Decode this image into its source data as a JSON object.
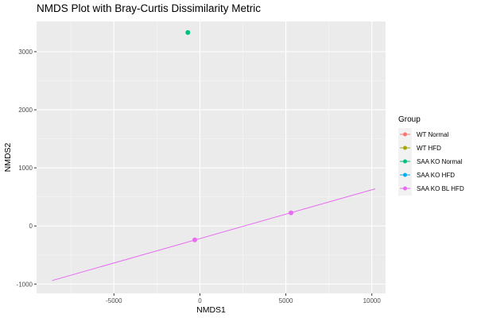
{
  "chart_data": {
    "type": "scatter",
    "title": "NMDS Plot with Bray-Curtis Dissimilarity Metric",
    "xlabel": "NMDS1",
    "ylabel": "NMDS2",
    "xlim": [
      -9500,
      10800
    ],
    "ylim": [
      -1160,
      3520
    ],
    "x_ticks": [
      -5000,
      0,
      5000,
      10000
    ],
    "y_ticks": [
      -1000,
      0,
      1000,
      2000,
      3000
    ],
    "x_minor": [
      -7500,
      -2500,
      2500,
      7500
    ],
    "y_minor": [
      -500,
      500,
      1500,
      2500
    ],
    "grid": true,
    "legend": {
      "title": "Group",
      "position": "right",
      "entries": [
        "WT Normal",
        "WT HFD",
        "SAA KO Normal",
        "SAA KO HFD",
        "SAA KO BL HFD"
      ]
    },
    "series": [
      {
        "name": "WT Normal",
        "color": "#F8766D",
        "points": []
      },
      {
        "name": "WT HFD",
        "color": "#A3A500",
        "points": []
      },
      {
        "name": "SAA KO Normal",
        "color": "#00BF7D",
        "points": [
          [
            -700,
            3330
          ]
        ]
      },
      {
        "name": "SAA KO HFD",
        "color": "#00B0F6",
        "points": []
      },
      {
        "name": "SAA KO BL HFD",
        "color": "#E76BF3",
        "points": [
          [
            -300,
            -240
          ],
          [
            5300,
            225
          ]
        ]
      }
    ],
    "trend_line": {
      "series": "SAA KO BL HFD",
      "color": "#E76BF3",
      "x": [
        -8600,
        10200
      ],
      "y": [
        -940,
        640
      ]
    }
  }
}
